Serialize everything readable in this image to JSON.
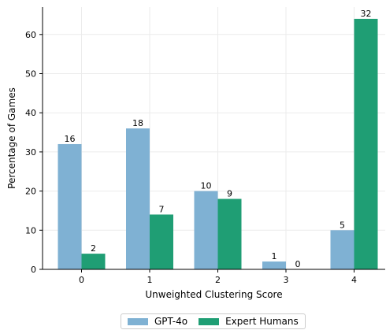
{
  "chart_data": {
    "type": "bar",
    "categories": [
      "0",
      "1",
      "2",
      "3",
      "4"
    ],
    "xlabel": "Unweighted Clustering Score",
    "ylabel": "Percentage of Games",
    "ylim": [
      0,
      67
    ],
    "yticks": [
      0,
      10,
      20,
      30,
      40,
      50,
      60
    ],
    "grid": true,
    "legend_position": "bottom-center",
    "series": [
      {
        "name": "GPT-4o",
        "color": "#7fb1d3",
        "values": [
          32,
          36,
          20,
          2,
          10
        ],
        "counts": [
          "16",
          "18",
          "10",
          "1",
          "5"
        ]
      },
      {
        "name": "Expert Humans",
        "color": "#1f9e74",
        "values": [
          4,
          14,
          18,
          0,
          64
        ],
        "counts": [
          "2",
          "7",
          "9",
          "0",
          "32"
        ]
      }
    ]
  }
}
